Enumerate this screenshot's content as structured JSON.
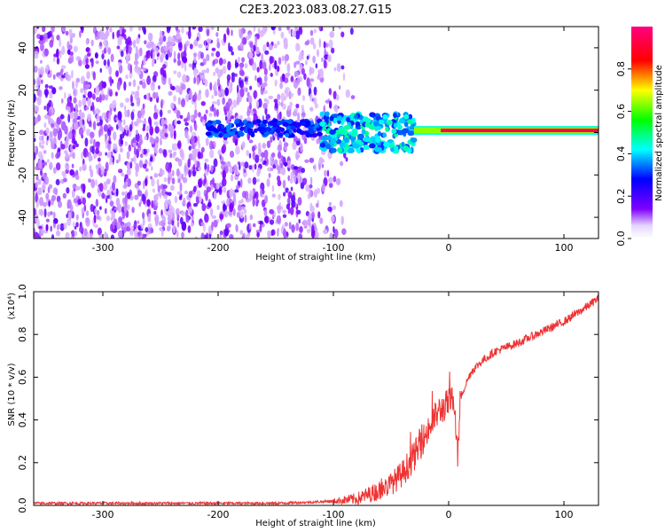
{
  "title": "C2E3.2023.083.08.27.G15",
  "chart_data": [
    {
      "type": "heatmap",
      "xlabel": "Height of straight line (km)",
      "ylabel": "Frequency (Hz)",
      "xlim": [
        -360,
        130
      ],
      "ylim": [
        -50,
        50
      ],
      "xticks": [
        -300,
        -200,
        -100,
        0,
        100
      ],
      "xtick_labels": [
        "-300",
        "-200",
        "-100",
        "0",
        "100"
      ],
      "yticks": [
        -40,
        -20,
        0,
        20,
        40
      ],
      "ytick_labels": [
        "-40",
        "-20",
        "0",
        "20",
        "40"
      ],
      "colorbar": {
        "label": "Normalized spectral amplitude",
        "range": [
          0,
          1
        ],
        "ticks": [
          0.0,
          0.2,
          0.4,
          0.6,
          0.8
        ],
        "tick_labels": [
          "0.0",
          "0.2",
          "0.4",
          "0.6",
          "0.8"
        ],
        "colormap": [
          "#ffffff",
          "#7f00ff",
          "#0000ff",
          "#00ffff",
          "#00ff00",
          "#ffff00",
          "#ff0000",
          "#ff0080"
        ]
      },
      "features": [
        {
          "description_x_range": [
            -360,
            -100
          ],
          "frequency_range": [
            -50,
            50
          ],
          "amplitude": 0.15,
          "kind": "scattered noise"
        },
        {
          "description_x_range": [
            -210,
            -110
          ],
          "frequency_center": 2,
          "amplitude": 0.3,
          "kind": "weak band"
        },
        {
          "description_x_range": [
            -110,
            -30
          ],
          "frequency_center": 0,
          "amplitude": 0.4,
          "kind": "broadened band"
        },
        {
          "description_x_range": [
            -30,
            130
          ],
          "frequency_center": 1,
          "amplitude": 0.95,
          "kind": "strong narrow line"
        }
      ],
      "grid": false
    },
    {
      "type": "line",
      "xlabel": "Height of straight line (km)",
      "ylabel": "SNR (10 * v/v)",
      "y_multiplier": "(x10⁴)",
      "xlim": [
        -360,
        130
      ],
      "ylim": [
        0,
        1.0
      ],
      "xticks": [
        -300,
        -200,
        -100,
        0,
        100
      ],
      "xtick_labels": [
        "-300",
        "-200",
        "-100",
        "0",
        "100"
      ],
      "yticks": [
        0.0,
        0.2,
        0.4,
        0.6,
        0.8,
        1.0
      ],
      "ytick_labels": [
        "0.0",
        "0.2",
        "0.4",
        "0.6",
        "0.8",
        "1.0"
      ],
      "series": [
        {
          "color": "#ee3333",
          "x": [
            -360,
            -300,
            -250,
            -200,
            -150,
            -120,
            -100,
            -80,
            -60,
            -50,
            -40,
            -30,
            -20,
            -10,
            0,
            5,
            8,
            10,
            15,
            20,
            30,
            40,
            60,
            80,
            100,
            120,
            130
          ],
          "y": [
            0.01,
            0.01,
            0.01,
            0.01,
            0.01,
            0.015,
            0.02,
            0.03,
            0.07,
            0.1,
            0.15,
            0.23,
            0.33,
            0.43,
            0.48,
            0.5,
            0.22,
            0.5,
            0.57,
            0.63,
            0.68,
            0.72,
            0.76,
            0.81,
            0.86,
            0.93,
            0.97
          ]
        }
      ],
      "grid": false
    }
  ]
}
